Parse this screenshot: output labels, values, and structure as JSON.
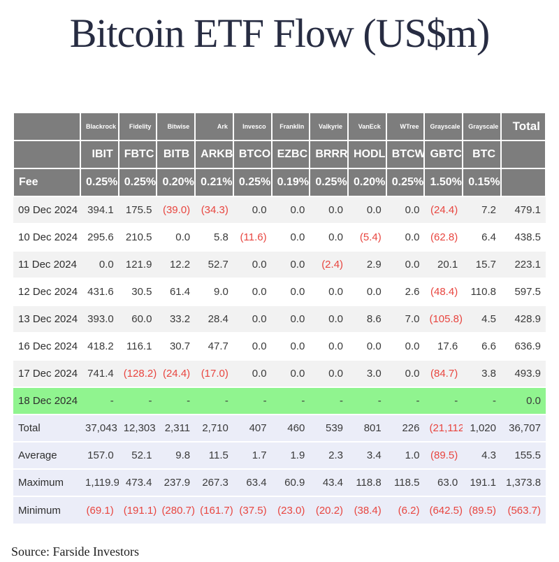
{
  "title": "Bitcoin ETF Flow (US$m)",
  "source": "Source: Farside Investors",
  "colors": {
    "header_bg": "#7d7d7d",
    "header_text": "#ffffff",
    "row_alt": "#f2f2f2",
    "highlight_row": "#90f48f",
    "summary_bg": "#ebedf8",
    "negative": "#e8453f",
    "title_text": "#272c42"
  },
  "chart_data": {
    "type": "table",
    "title": "Bitcoin ETF Flow (US$m)",
    "issuers": [
      "Blackrock",
      "Fidelity",
      "Bitwise",
      "Ark",
      "Invesco",
      "Franklin",
      "Valkyrie",
      "VanEck",
      "WTree",
      "Grayscale",
      "Grayscale"
    ],
    "tickers": [
      "IBIT",
      "FBTC",
      "BITB",
      "ARKB",
      "BTCO",
      "EZBC",
      "BRRR",
      "HODL",
      "BTCW",
      "GBTC",
      "BTC"
    ],
    "total_label": "Total",
    "fee_label": "Fee",
    "fees": [
      "0.25%",
      "0.25%",
      "0.20%",
      "0.21%",
      "0.25%",
      "0.19%",
      "0.25%",
      "0.20%",
      "0.25%",
      "1.50%",
      "0.15%"
    ],
    "rows": [
      {
        "label": "09 Dec 2024",
        "values": [
          "394.1",
          "175.5",
          "(39.0)",
          "(34.3)",
          "0.0",
          "0.0",
          "0.0",
          "0.0",
          "0.0",
          "(24.4)",
          "7.2"
        ],
        "total": "479.1",
        "highlight": false
      },
      {
        "label": "10 Dec 2024",
        "values": [
          "295.6",
          "210.5",
          "0.0",
          "5.8",
          "(11.6)",
          "0.0",
          "0.0",
          "(5.4)",
          "0.0",
          "(62.8)",
          "6.4"
        ],
        "total": "438.5",
        "highlight": false
      },
      {
        "label": "11 Dec 2024",
        "values": [
          "0.0",
          "121.9",
          "12.2",
          "52.7",
          "0.0",
          "0.0",
          "(2.4)",
          "2.9",
          "0.0",
          "20.1",
          "15.7"
        ],
        "total": "223.1",
        "highlight": false
      },
      {
        "label": "12 Dec 2024",
        "values": [
          "431.6",
          "30.5",
          "61.4",
          "9.0",
          "0.0",
          "0.0",
          "0.0",
          "0.0",
          "2.6",
          "(48.4)",
          "110.8"
        ],
        "total": "597.5",
        "highlight": false
      },
      {
        "label": "13 Dec 2024",
        "values": [
          "393.0",
          "60.0",
          "33.2",
          "28.4",
          "0.0",
          "0.0",
          "0.0",
          "8.6",
          "7.0",
          "(105.8)",
          "4.5"
        ],
        "total": "428.9",
        "highlight": false
      },
      {
        "label": "16 Dec 2024",
        "values": [
          "418.2",
          "116.1",
          "30.7",
          "47.7",
          "0.0",
          "0.0",
          "0.0",
          "0.0",
          "0.0",
          "17.6",
          "6.6"
        ],
        "total": "636.9",
        "highlight": false
      },
      {
        "label": "17 Dec 2024",
        "values": [
          "741.4",
          "(128.2)",
          "(24.4)",
          "(17.0)",
          "0.0",
          "0.0",
          "0.0",
          "3.0",
          "0.0",
          "(84.7)",
          "3.8"
        ],
        "total": "493.9",
        "highlight": false
      },
      {
        "label": "18 Dec 2024",
        "values": [
          "-",
          "-",
          "-",
          "-",
          "-",
          "-",
          "-",
          "-",
          "-",
          "-",
          "-"
        ],
        "total": "0.0",
        "highlight": true
      }
    ],
    "summary": [
      {
        "label": "Total",
        "values": [
          "37,043",
          "12,303",
          "2,311",
          "2,710",
          "407",
          "460",
          "539",
          "801",
          "226",
          "(21,112)",
          "1,020"
        ],
        "total": "36,707"
      },
      {
        "label": "Average",
        "values": [
          "157.0",
          "52.1",
          "9.8",
          "11.5",
          "1.7",
          "1.9",
          "2.3",
          "3.4",
          "1.0",
          "(89.5)",
          "4.3"
        ],
        "total": "155.5"
      },
      {
        "label": "Maximum",
        "values": [
          "1,119.9",
          "473.4",
          "237.9",
          "267.3",
          "63.4",
          "60.9",
          "43.4",
          "118.8",
          "118.5",
          "63.0",
          "191.1"
        ],
        "total": "1,373.8"
      },
      {
        "label": "Minimum",
        "values": [
          "(69.1)",
          "(191.1)",
          "(280.7)",
          "(161.7)",
          "(37.5)",
          "(23.0)",
          "(20.2)",
          "(38.4)",
          "(6.2)",
          "(642.5)",
          "(89.5)"
        ],
        "total": "(563.7)"
      }
    ]
  }
}
